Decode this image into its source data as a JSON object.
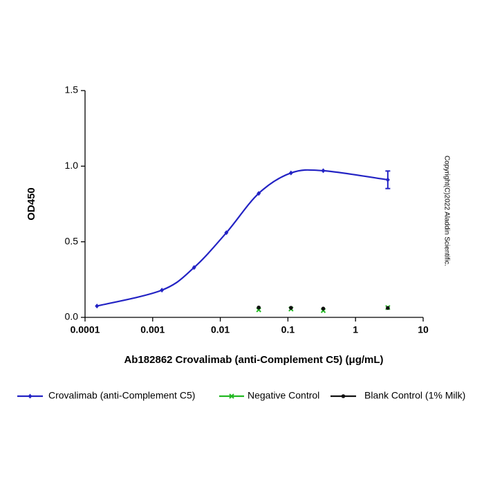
{
  "chart_data": {
    "type": "scatter",
    "x_label": "Ab182862 Crovalimab (anti-Complement C5) (μg/mL)",
    "y_label": "OD450",
    "annotation": "Copyright(C)2022 Aladdin Scientific.",
    "xscale": "log",
    "xlim": [
      0.0001,
      10
    ],
    "xticks": [
      0.0001,
      0.001,
      0.01,
      0.1,
      1,
      10
    ],
    "ylim": [
      0,
      1.5
    ],
    "yticks": [
      {
        "value": 0,
        "label": "0.0"
      },
      {
        "value": 0.5,
        "label": "0.5"
      },
      {
        "value": 1,
        "label": "1.0"
      },
      {
        "value": 1.5,
        "label": "1.5"
      }
    ],
    "legend": "bottom",
    "series": [
      {
        "name": "Crovalimab (anti-Complement C5)",
        "color": "#2323c4",
        "marker": "diamond",
        "line": true,
        "x": [
          0.00015,
          0.00137,
          0.0041,
          0.0123,
          0.037,
          0.111,
          0.333,
          3
        ],
        "values": [
          0.075,
          0.18,
          0.33,
          0.56,
          0.82,
          0.955,
          0.97,
          0.91
        ],
        "errors": [
          null,
          null,
          null,
          null,
          null,
          null,
          null,
          0.058
        ]
      },
      {
        "name": "Negative Control",
        "color": "#22b822",
        "marker": "x",
        "line": false,
        "x": [
          0.037,
          0.111,
          0.333,
          3
        ],
        "values": [
          0.05,
          0.055,
          0.045,
          0.065
        ]
      },
      {
        "name": "Blank Control (1% Milk)",
        "color": "#111111",
        "marker": "circle",
        "line": false,
        "x": [
          0.037,
          0.111,
          0.333,
          3
        ],
        "values": [
          0.065,
          0.063,
          0.058,
          0.062
        ]
      }
    ]
  }
}
